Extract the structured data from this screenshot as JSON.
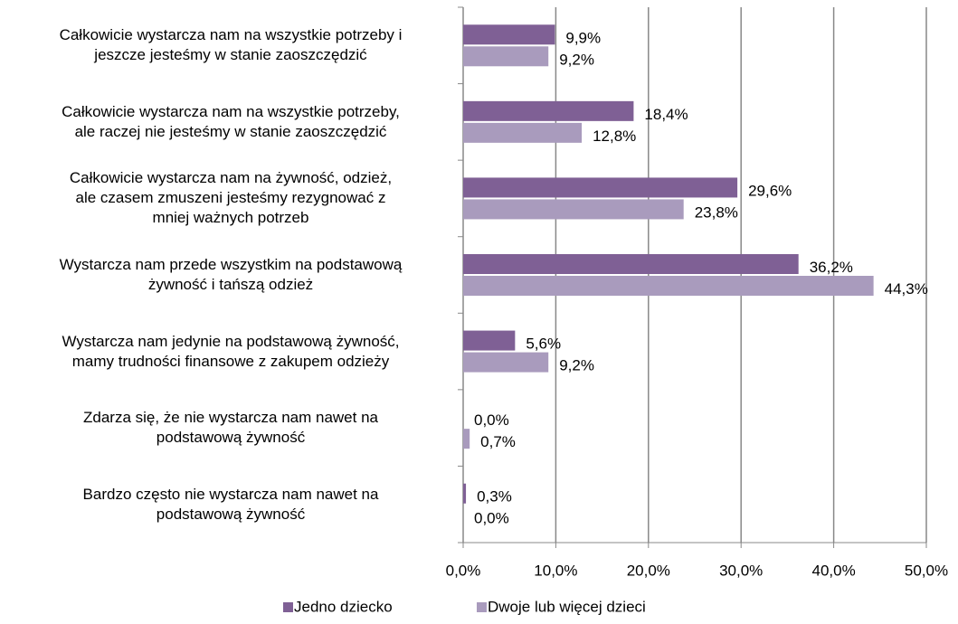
{
  "chart_data": {
    "type": "hbar",
    "categories": [
      "Całkowicie wystarcza nam na wszystkie potrzeby i\njeszcze jesteśmy w stanie zaoszczędzić",
      "Całkowicie wystarcza nam na wszystkie potrzeby,\nale raczej nie jesteśmy w stanie zaoszczędzić",
      "Całkowicie wystarcza nam na żywność, odzież,\nale czasem zmuszeni jesteśmy rezygnować z\nmniej ważnych potrzeb",
      "Wystarcza nam przede wszystkim na podstawową\nżywność i tańszą odzież",
      "Wystarcza nam jedynie na podstawową żywność,\nmamy trudności finansowe z zakupem odzieży",
      "Zdarza się, że nie wystarcza nam nawet na\npodstawową żywność",
      "Bardzo często nie wystarcza nam nawet na\npodstawową żywność"
    ],
    "series": [
      {
        "name": "Jedno dziecko",
        "color": "#7f6095",
        "values": [
          9.9,
          18.4,
          29.6,
          36.2,
          5.6,
          0.0,
          0.3
        ],
        "value_labels": [
          "9,9%",
          "18,4%",
          "29,6%",
          "36,2%",
          "5,6%",
          "0,0%",
          "0,3%"
        ]
      },
      {
        "name": "Dwoje lub więcej dzieci",
        "color": "#a99bbd",
        "values": [
          9.2,
          12.8,
          23.8,
          44.3,
          9.2,
          0.7,
          0.0
        ],
        "value_labels": [
          "9,2%",
          "12,8%",
          "23,8%",
          "44,3%",
          "9,2%",
          "0,7%",
          "0,0%"
        ]
      }
    ],
    "xlim": [
      0,
      50
    ],
    "xticks": [
      {
        "value": 0,
        "label": "0,0%"
      },
      {
        "value": 10,
        "label": "10,0%"
      },
      {
        "value": 20,
        "label": "20,0%"
      },
      {
        "value": 30,
        "label": "30,0%"
      },
      {
        "value": 40,
        "label": "40,0%"
      },
      {
        "value": 50,
        "label": "50,0%"
      }
    ],
    "grid": true,
    "legend": "bottom"
  }
}
